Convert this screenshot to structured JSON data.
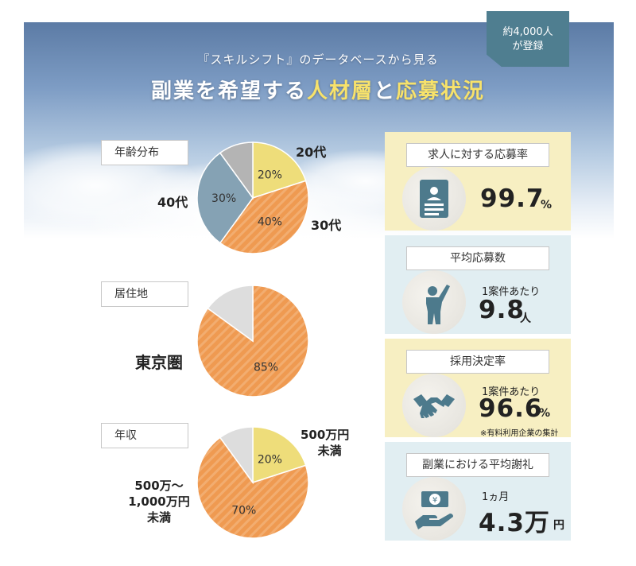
{
  "header": {
    "subtitle": "『スキルシフト』のデータベースから見る",
    "headline_a": "副業を希望する",
    "headline_b": "人材層",
    "headline_c": "と",
    "headline_d": "応募状況",
    "flag_line1": "約4,000人",
    "flag_line2": "が登録"
  },
  "colors": {
    "yellow": "#eedd7a",
    "orange": "#ef9a51",
    "blue_gray": "#85a2b4",
    "gray": "#b4b4b4",
    "accent_yellow": "#f7e26b"
  },
  "chart_data": [
    {
      "type": "pie",
      "title": "年齢分布",
      "slices": [
        {
          "label": "20代",
          "value": 20,
          "value_label": "20%",
          "color": "#eedd7a"
        },
        {
          "label": "30代",
          "value": 40,
          "value_label": "40%",
          "color": "#ef9a51"
        },
        {
          "label": "40代",
          "value": 30,
          "value_label": "30%",
          "color": "#85a2b4"
        },
        {
          "label": "",
          "value": 10,
          "value_label": "",
          "color": "#b4b4b4"
        }
      ]
    },
    {
      "type": "pie",
      "title": "居住地",
      "slices": [
        {
          "label": "東京圏",
          "value": 85,
          "value_label": "85%",
          "color": "#ef9a51"
        },
        {
          "label": "",
          "value": 15,
          "value_label": "",
          "color": "#dddddd"
        }
      ]
    },
    {
      "type": "pie",
      "title": "年収",
      "slices": [
        {
          "label": "500万円未満",
          "value": 20,
          "value_label": "20%",
          "color": "#eedd7a"
        },
        {
          "label": "500万～1,000万円未満",
          "value": 70,
          "value_label": "70%",
          "color": "#ef9a51"
        },
        {
          "label": "",
          "value": 10,
          "value_label": "",
          "color": "#dddddd"
        }
      ]
    }
  ],
  "pie_labels": {
    "age_20": "20代",
    "age_30": "30代",
    "age_40": "40代",
    "residence_tokyo": "東京圏",
    "income_under500_a": "500万円",
    "income_under500_b": "未満",
    "income_mid_a": "500万～",
    "income_mid_b": "1,000万円",
    "income_mid_c": "未満"
  },
  "cards": [
    {
      "title": "求人に対する応募率",
      "pre": "",
      "value": "99.7",
      "unit": "%",
      "note": "",
      "icon": "document-icon"
    },
    {
      "title": "平均応募数",
      "pre": "1案件あたり",
      "value": "9.8",
      "unit": "人",
      "note": "",
      "icon": "person-raising-hand-icon"
    },
    {
      "title": "採用決定率",
      "pre": "1案件あたり",
      "value": "96.6",
      "unit": "%",
      "note": "※有料利用企業の集計",
      "icon": "handshake-icon"
    },
    {
      "title": "副業における平均謝礼",
      "pre": "1ヵ月",
      "value": "4.3万",
      "unit": "円",
      "note": "",
      "icon": "money-hand-icon"
    }
  ]
}
